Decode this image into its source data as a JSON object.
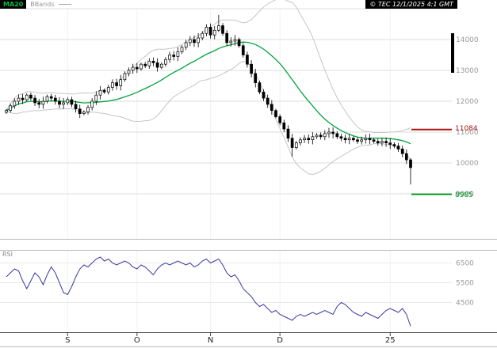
{
  "legend": {
    "ma20_label": "MA20",
    "bbands_label": "BBands"
  },
  "copyright": "© TEC 12/1/2025 4:1 GMT",
  "alerts": {
    "upper": {
      "label": "11084",
      "value": 11084,
      "color": "#aa1111"
    },
    "lower": {
      "label": "8985",
      "value": 8985,
      "color": "#009922"
    }
  },
  "price_axis": {
    "ticks": [
      {
        "value": 15000,
        "label": ""
      },
      {
        "value": 14000,
        "label": "14000"
      },
      {
        "value": 13000,
        "label": "13000"
      },
      {
        "value": 12000,
        "label": "12000"
      },
      {
        "value": 11000,
        "label": "11000"
      },
      {
        "value": 10000,
        "label": "10000"
      },
      {
        "value": 9000,
        "label": "9000"
      }
    ]
  },
  "rsi_panel": {
    "label": "RSI",
    "ticks": [
      {
        "value": 6500,
        "label": "6500"
      },
      {
        "value": 5500,
        "label": "5500"
      },
      {
        "value": 4500,
        "label": "4500"
      }
    ]
  },
  "x_axis": {
    "labels": [
      {
        "text": "S",
        "index": 15
      },
      {
        "text": "O",
        "index": 32
      },
      {
        "text": "N",
        "index": 50
      },
      {
        "text": "D",
        "index": 67
      },
      {
        "text": "25",
        "index": 94
      }
    ]
  },
  "chart_data": {
    "type": "candlestick",
    "title": "Daily price candlesticks with MA20 and Bollinger Bands, RSI sub-panel",
    "x_note": "daily bars Aug - Jan; month-start indices: S=15, O=32, N=50, D=67, 25=94",
    "ylim": [
      7500,
      15050
    ],
    "price": {
      "closes": [
        11700,
        11850,
        12000,
        12100,
        12050,
        12200,
        12100,
        11950,
        11900,
        12000,
        12150,
        12100,
        12000,
        11900,
        11950,
        12050,
        11900,
        11750,
        11600,
        11650,
        11800,
        12000,
        12200,
        12350,
        12300,
        12450,
        12600,
        12500,
        12700,
        12900,
        13000,
        13100,
        13050,
        13200,
        13150,
        13300,
        13250,
        13100,
        13200,
        13350,
        13500,
        13450,
        13600,
        13750,
        13900,
        14000,
        13900,
        14050,
        14200,
        14400,
        14150,
        14300,
        14450,
        14200,
        13900,
        13950,
        14000,
        13800,
        13500,
        13200,
        12900,
        12600,
        12300,
        12100,
        11900,
        11700,
        11500,
        11300,
        11100,
        10800,
        10500,
        10650,
        10750,
        10800,
        10750,
        10850,
        10900,
        10850,
        10950,
        11000,
        10950,
        10850,
        10800,
        10750,
        10800,
        10750,
        10700,
        10750,
        10800,
        10750,
        10700,
        10650,
        10700,
        10650,
        10600,
        10550,
        10450,
        10300,
        10100,
        9850
      ],
      "wick_spikes": {
        "52": {
          "high": 14800
        },
        "70": {
          "low": 10200
        },
        "99": {
          "low": 9300
        }
      }
    },
    "overlays": [
      {
        "name": "MA20",
        "kind": "sma",
        "window": 20,
        "color": "#00a33d"
      },
      {
        "name": "BBands",
        "kind": "bollinger",
        "window": 20,
        "k": 2,
        "color": "#c6c6c6"
      }
    ],
    "horizontal_lines": [
      {
        "value": 11084,
        "color": "#aa1111"
      },
      {
        "value": 8985,
        "color": "#009922"
      }
    ],
    "rsi": {
      "range": [
        3000,
        7200
      ],
      "color": "#3a3aa0",
      "values": [
        5800,
        6000,
        6200,
        6100,
        5600,
        5200,
        5600,
        6000,
        5800,
        5400,
        5900,
        6300,
        6000,
        5500,
        5000,
        4900,
        5300,
        5800,
        6200,
        6400,
        6300,
        6500,
        6700,
        6800,
        6600,
        6700,
        6500,
        6400,
        6500,
        6600,
        6500,
        6300,
        6200,
        6400,
        6300,
        6100,
        5900,
        6200,
        6400,
        6500,
        6400,
        6500,
        6600,
        6500,
        6400,
        6500,
        6300,
        6400,
        6600,
        6700,
        6500,
        6600,
        6700,
        6400,
        6000,
        5800,
        5900,
        5600,
        5200,
        5000,
        4800,
        4500,
        4300,
        4400,
        4200,
        4000,
        4100,
        3900,
        3800,
        3700,
        3600,
        3800,
        3900,
        3800,
        3900,
        4000,
        3900,
        4000,
        4100,
        4000,
        3900,
        4300,
        4500,
        4400,
        4200,
        4000,
        3900,
        3800,
        4000,
        3900,
        3800,
        3700,
        3900,
        4100,
        4200,
        4100,
        4000,
        4200,
        3900,
        3300
      ]
    }
  }
}
